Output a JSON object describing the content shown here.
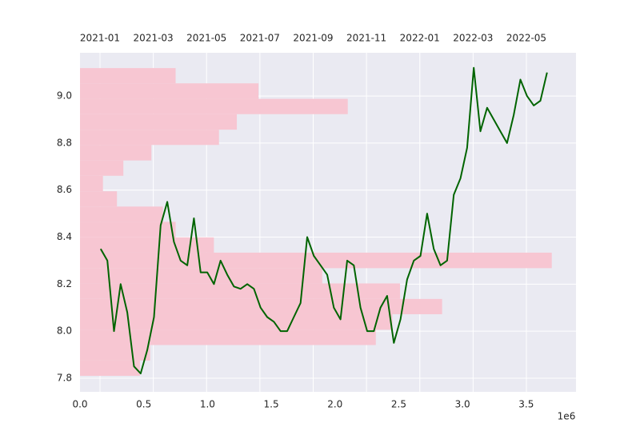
{
  "chart_data": {
    "type": "line",
    "x2ticks": [
      "2021-01",
      "2021-03",
      "2021-05",
      "2021-07",
      "2021-09",
      "2021-11",
      "2022-01",
      "2022-03",
      "2022-05"
    ],
    "x": [
      "2021-01",
      "2021-01",
      "2021-01",
      "2021-01",
      "2021-02",
      "2021-02",
      "2021-02",
      "2021-02",
      "2021-03",
      "2021-03",
      "2021-03",
      "2021-03",
      "2021-04",
      "2021-04",
      "2021-04",
      "2021-04",
      "2021-05",
      "2021-05",
      "2021-05",
      "2021-05",
      "2021-06",
      "2021-06",
      "2021-06",
      "2021-06",
      "2021-07",
      "2021-07",
      "2021-07",
      "2021-07",
      "2021-08",
      "2021-08",
      "2021-08",
      "2021-08",
      "2021-09",
      "2021-09",
      "2021-09",
      "2021-09",
      "2021-10",
      "2021-10",
      "2021-10",
      "2021-10",
      "2021-11",
      "2021-11",
      "2021-11",
      "2021-11",
      "2021-12",
      "2021-12",
      "2021-12",
      "2021-12",
      "2022-01",
      "2022-01",
      "2022-01",
      "2022-01",
      "2022-02",
      "2022-02",
      "2022-02",
      "2022-02",
      "2022-03",
      "2022-03",
      "2022-03",
      "2022-03",
      "2022-04",
      "2022-04",
      "2022-04",
      "2022-04",
      "2022-05",
      "2022-05",
      "2022-05",
      "2022-05"
    ],
    "values": [
      8.35,
      8.3,
      8.0,
      8.2,
      8.08,
      7.85,
      7.82,
      7.92,
      8.06,
      8.45,
      8.55,
      8.38,
      8.3,
      8.28,
      8.48,
      8.25,
      8.25,
      8.2,
      8.3,
      8.24,
      8.19,
      8.18,
      8.2,
      8.18,
      8.1,
      8.06,
      8.04,
      8.0,
      8.0,
      8.06,
      8.12,
      8.4,
      8.32,
      8.28,
      8.24,
      8.1,
      8.05,
      8.3,
      8.28,
      8.1,
      8.0,
      8.0,
      8.1,
      8.15,
      7.95,
      8.05,
      8.22,
      8.3,
      8.32,
      8.5,
      8.35,
      8.28,
      8.3,
      8.58,
      8.65,
      8.78,
      9.12,
      8.85,
      8.95,
      8.9,
      8.85,
      8.8,
      8.92,
      9.07,
      9.0,
      8.96,
      8.98,
      9.1
    ],
    "color": "#006400",
    "histogram": {
      "type": "histogram",
      "orientation": "horizontal",
      "bins": [
        7.81,
        7.875,
        7.941,
        8.006,
        8.072,
        8.137,
        8.203,
        8.268,
        8.334,
        8.399,
        8.465,
        8.53,
        8.595,
        8.661,
        8.726,
        8.792,
        8.857,
        8.923,
        8.988,
        9.054,
        9.119
      ],
      "counts": [
        0.47,
        0.55,
        2.32,
        2.45,
        2.84,
        2.51,
        1.9,
        3.7,
        1.05,
        0.75,
        0.65,
        0.29,
        0.18,
        0.34,
        0.56,
        1.09,
        1.23,
        2.1,
        1.4,
        0.75
      ],
      "color": "#f7c6d2"
    },
    "xlim": [
      0,
      3.89
    ],
    "xticks": [
      {
        "value": 0,
        "label": "0.0"
      },
      0.5,
      {
        "value": 1,
        "label": "1.0"
      },
      1.5,
      {
        "value": 2,
        "label": "2.0"
      },
      2.5,
      {
        "value": 3,
        "label": "3.0"
      },
      3.5
    ],
    "x_offset_label": "1e6",
    "ylim": [
      7.742,
      9.184
    ],
    "yticks": [
      7.8,
      {
        "value": 8,
        "label": "8.0"
      },
      8.2,
      8.4,
      8.6,
      8.8,
      {
        "value": 9,
        "label": "9.0"
      }
    ],
    "grid": true
  }
}
